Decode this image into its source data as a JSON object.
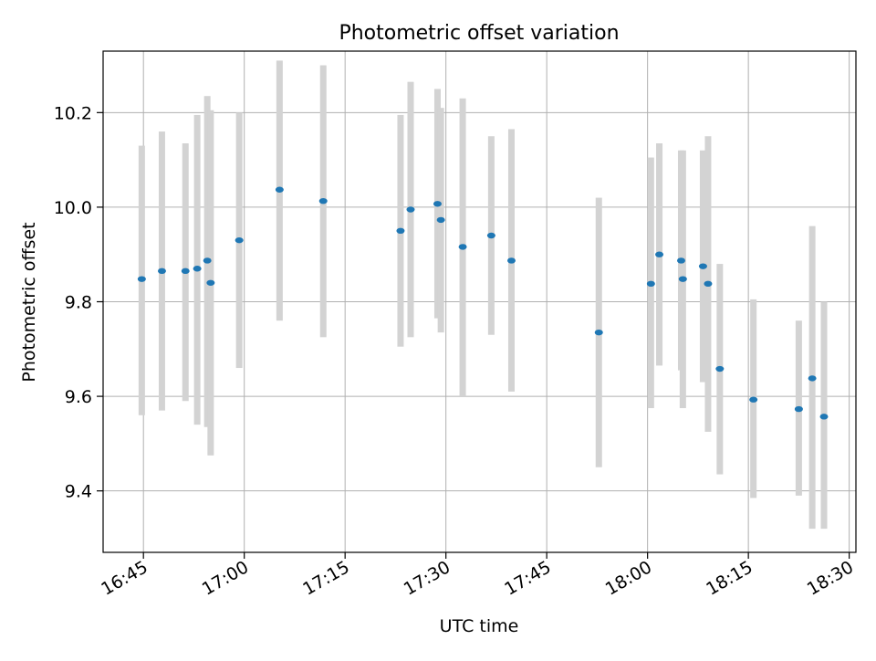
{
  "chart_data": {
    "type": "scatter",
    "title": "Photometric offset variation",
    "xlabel": "UTC time",
    "ylabel": "Photometric offset",
    "x_tick_labels": [
      "16:45",
      "17:00",
      "17:15",
      "17:30",
      "17:45",
      "18:00",
      "18:15",
      "18:30"
    ],
    "y_tick_labels": [
      "9.4",
      "9.6",
      "9.8",
      "10.0",
      "10.2"
    ],
    "xlim": [
      "16:39",
      "18:31"
    ],
    "ylim": [
      9.27,
      10.33
    ],
    "grid": true,
    "error_bar_color": "#d3d3d3",
    "point_color": "#1f77b4",
    "points": [
      {
        "time": "16:44:45",
        "y": 9.848,
        "lo": 9.56,
        "hi": 10.13
      },
      {
        "time": "16:47:45",
        "y": 9.865,
        "lo": 9.57,
        "hi": 10.16
      },
      {
        "time": "16:51:15",
        "y": 9.865,
        "lo": 9.59,
        "hi": 10.135
      },
      {
        "time": "16:53:00",
        "y": 9.87,
        "lo": 9.54,
        "hi": 10.195
      },
      {
        "time": "16:54:30",
        "y": 9.887,
        "lo": 9.535,
        "hi": 10.235
      },
      {
        "time": "16:55:00",
        "y": 9.84,
        "lo": 9.475,
        "hi": 10.205
      },
      {
        "time": "16:59:15",
        "y": 9.93,
        "lo": 9.66,
        "hi": 10.2
      },
      {
        "time": "17:05:15",
        "y": 10.037,
        "lo": 9.76,
        "hi": 10.31
      },
      {
        "time": "17:11:45",
        "y": 10.013,
        "lo": 9.725,
        "hi": 10.3
      },
      {
        "time": "17:23:15",
        "y": 9.95,
        "lo": 9.705,
        "hi": 10.195
      },
      {
        "time": "17:24:45",
        "y": 9.995,
        "lo": 9.725,
        "hi": 10.265
      },
      {
        "time": "17:28:45",
        "y": 10.007,
        "lo": 9.765,
        "hi": 10.25
      },
      {
        "time": "17:29:15",
        "y": 9.973,
        "lo": 9.735,
        "hi": 10.21
      },
      {
        "time": "17:32:30",
        "y": 9.916,
        "lo": 9.6,
        "hi": 10.23
      },
      {
        "time": "17:36:45",
        "y": 9.94,
        "lo": 9.73,
        "hi": 10.15
      },
      {
        "time": "17:39:45",
        "y": 9.887,
        "lo": 9.61,
        "hi": 10.165
      },
      {
        "time": "17:52:45",
        "y": 9.735,
        "lo": 9.45,
        "hi": 10.02
      },
      {
        "time": "18:00:30",
        "y": 9.838,
        "lo": 9.575,
        "hi": 10.105
      },
      {
        "time": "18:01:45",
        "y": 9.9,
        "lo": 9.665,
        "hi": 10.135
      },
      {
        "time": "18:05:00",
        "y": 9.887,
        "lo": 9.655,
        "hi": 10.12
      },
      {
        "time": "18:05:15",
        "y": 9.848,
        "lo": 9.575,
        "hi": 10.12
      },
      {
        "time": "18:08:15",
        "y": 9.875,
        "lo": 9.63,
        "hi": 10.12
      },
      {
        "time": "18:09:00",
        "y": 9.838,
        "lo": 9.525,
        "hi": 10.15
      },
      {
        "time": "18:10:45",
        "y": 9.658,
        "lo": 9.435,
        "hi": 9.88
      },
      {
        "time": "18:15:45",
        "y": 9.593,
        "lo": 9.385,
        "hi": 9.805
      },
      {
        "time": "18:22:30",
        "y": 9.573,
        "lo": 9.39,
        "hi": 9.76
      },
      {
        "time": "18:24:30",
        "y": 9.638,
        "lo": 9.32,
        "hi": 9.96
      },
      {
        "time": "18:26:15",
        "y": 9.557,
        "lo": 9.32,
        "hi": 9.8
      }
    ]
  }
}
